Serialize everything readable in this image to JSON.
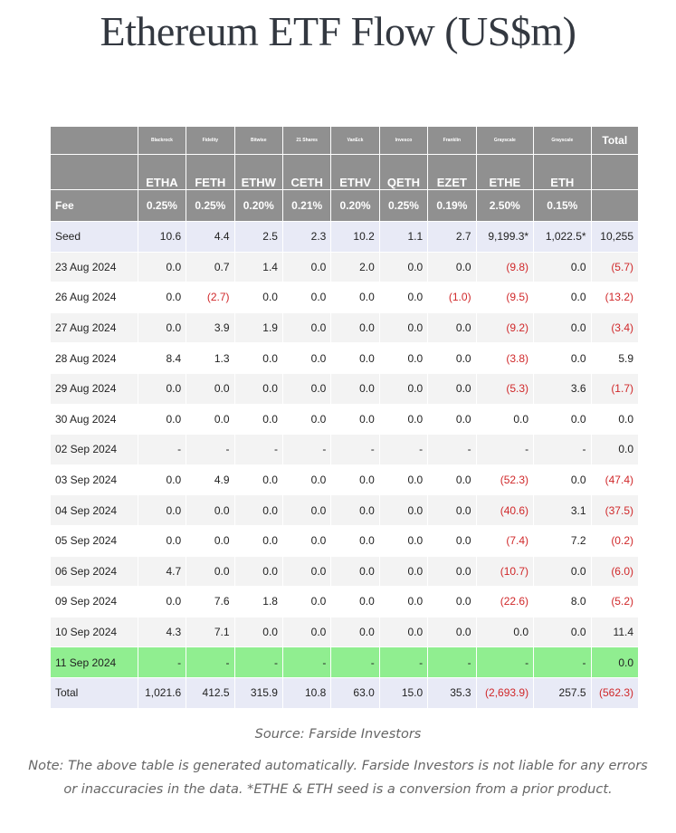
{
  "title": "Ethereum ETF Flow (US$m)",
  "header": {
    "issuers": [
      "Blackrock",
      "Fidelity",
      "Bitwise",
      "21 Shares",
      "VanEck",
      "Invesco",
      "Franklin",
      "Grayscale",
      "Grayscale"
    ],
    "total_label": "Total",
    "tickers": [
      "ETHA",
      "FETH",
      "ETHW",
      "CETH",
      "ETHV",
      "QETH",
      "EZET",
      "ETHE",
      "ETH"
    ],
    "fee_label": "Fee",
    "fees": [
      "0.25%",
      "0.25%",
      "0.20%",
      "0.21%",
      "0.20%",
      "0.25%",
      "0.19%",
      "2.50%",
      "0.15%"
    ]
  },
  "seed": {
    "label": "Seed",
    "values": [
      "10.6",
      "4.4",
      "2.5",
      "2.3",
      "10.2",
      "1.1",
      "2.7",
      "9,199.3*",
      "1,022.5*"
    ],
    "total": "10,255"
  },
  "rows": [
    {
      "date": "23 Aug 2024",
      "values": [
        "0.0",
        "0.7",
        "1.4",
        "0.0",
        "2.0",
        "0.0",
        "0.0",
        "(9.8)",
        "0.0"
      ],
      "total": "(5.7)"
    },
    {
      "date": "26 Aug 2024",
      "values": [
        "0.0",
        "(2.7)",
        "0.0",
        "0.0",
        "0.0",
        "0.0",
        "(1.0)",
        "(9.5)",
        "0.0"
      ],
      "total": "(13.2)"
    },
    {
      "date": "27 Aug 2024",
      "values": [
        "0.0",
        "3.9",
        "1.9",
        "0.0",
        "0.0",
        "0.0",
        "0.0",
        "(9.2)",
        "0.0"
      ],
      "total": "(3.4)"
    },
    {
      "date": "28 Aug 2024",
      "values": [
        "8.4",
        "1.3",
        "0.0",
        "0.0",
        "0.0",
        "0.0",
        "0.0",
        "(3.8)",
        "0.0"
      ],
      "total": "5.9"
    },
    {
      "date": "29 Aug 2024",
      "values": [
        "0.0",
        "0.0",
        "0.0",
        "0.0",
        "0.0",
        "0.0",
        "0.0",
        "(5.3)",
        "3.6"
      ],
      "total": "(1.7)"
    },
    {
      "date": "30 Aug 2024",
      "values": [
        "0.0",
        "0.0",
        "0.0",
        "0.0",
        "0.0",
        "0.0",
        "0.0",
        "0.0",
        "0.0"
      ],
      "total": "0.0"
    },
    {
      "date": "02 Sep 2024",
      "values": [
        "-",
        "-",
        "-",
        "-",
        "-",
        "-",
        "-",
        "-",
        "-"
      ],
      "total": "0.0"
    },
    {
      "date": "03 Sep 2024",
      "values": [
        "0.0",
        "4.9",
        "0.0",
        "0.0",
        "0.0",
        "0.0",
        "0.0",
        "(52.3)",
        "0.0"
      ],
      "total": "(47.4)"
    },
    {
      "date": "04 Sep 2024",
      "values": [
        "0.0",
        "0.0",
        "0.0",
        "0.0",
        "0.0",
        "0.0",
        "0.0",
        "(40.6)",
        "3.1"
      ],
      "total": "(37.5)"
    },
    {
      "date": "05 Sep 2024",
      "values": [
        "0.0",
        "0.0",
        "0.0",
        "0.0",
        "0.0",
        "0.0",
        "0.0",
        "(7.4)",
        "7.2"
      ],
      "total": "(0.2)"
    },
    {
      "date": "06 Sep 2024",
      "values": [
        "4.7",
        "0.0",
        "0.0",
        "0.0",
        "0.0",
        "0.0",
        "0.0",
        "(10.7)",
        "0.0"
      ],
      "total": "(6.0)"
    },
    {
      "date": "09 Sep 2024",
      "values": [
        "0.0",
        "7.6",
        "1.8",
        "0.0",
        "0.0",
        "0.0",
        "0.0",
        "(22.6)",
        "8.0"
      ],
      "total": "(5.2)"
    },
    {
      "date": "10 Sep 2024",
      "values": [
        "4.3",
        "7.1",
        "0.0",
        "0.0",
        "0.0",
        "0.0",
        "0.0",
        "0.0",
        "0.0"
      ],
      "total": "11.4"
    },
    {
      "date": "11 Sep 2024",
      "values": [
        "-",
        "-",
        "-",
        "-",
        "-",
        "-",
        "-",
        "-",
        "-"
      ],
      "total": "0.0",
      "highlight": true
    }
  ],
  "totals": {
    "label": "Total",
    "values": [
      "1,021.6",
      "412.5",
      "315.9",
      "10.8",
      "63.0",
      "15.0",
      "35.3",
      "(2,693.9)",
      "257.5"
    ],
    "total": "(562.3)"
  },
  "colors": {
    "header_bg": "#909090",
    "seed_total_bg": "#e8eaf6",
    "highlight_bg": "#90ee90",
    "negative_text": "#d0282a"
  },
  "footer": {
    "source": "Source: Farside Investors",
    "note": "Note: The above table is generated automatically. Farside Investors is not liable for any errors or inaccuracies in the data. *ETHE & ETH seed is a conversion from a prior product."
  }
}
